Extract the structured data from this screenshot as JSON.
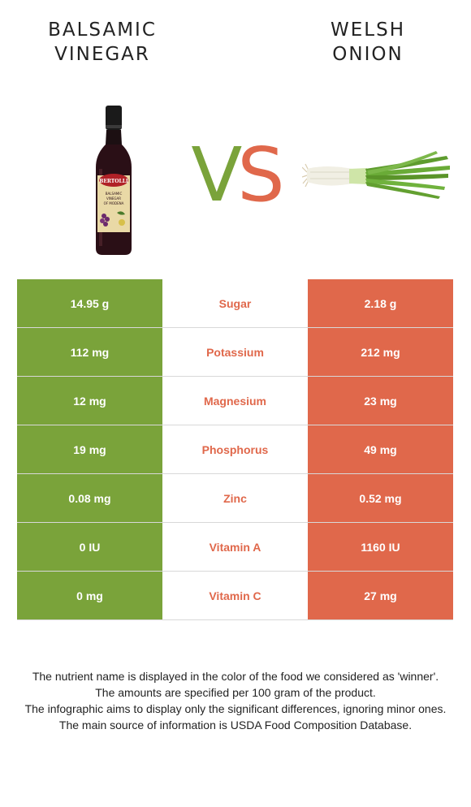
{
  "left_food": {
    "title_line1": "BALSAMIC",
    "title_line2": "VINEGAR",
    "color": "#7aa33a",
    "image": "balsamic-vinegar-bottle"
  },
  "right_food": {
    "title_line1": "WELSH",
    "title_line2": "ONION",
    "color": "#e0684b",
    "image": "welsh-onion"
  },
  "vs": {
    "v": "V",
    "s": "S"
  },
  "rows": [
    {
      "nutrient": "Sugar",
      "left": "14.95 g",
      "right": "2.18 g"
    },
    {
      "nutrient": "Potassium",
      "left": "112 mg",
      "right": "212 mg"
    },
    {
      "nutrient": "Magnesium",
      "left": "12 mg",
      "right": "23 mg"
    },
    {
      "nutrient": "Phosphorus",
      "left": "19 mg",
      "right": "49 mg"
    },
    {
      "nutrient": "Zinc",
      "left": "0.08 mg",
      "right": "0.52 mg"
    },
    {
      "nutrient": "Vitamin A",
      "left": "0 IU",
      "right": "1160 IU"
    },
    {
      "nutrient": "Vitamin C",
      "left": "0 mg",
      "right": "27 mg"
    }
  ],
  "notes": [
    "The nutrient name is displayed in the color of the food we considered as 'winner'.",
    "The amounts are specified per 100 gram of the product.",
    "The infographic aims to display only the significant differences, ignoring minor ones.",
    "The main source of information is USDA Food Composition Database."
  ],
  "bottle_label": {
    "brand": "BERTOLLI",
    "line1": "BALSAMIC",
    "line2": "VINEGAR",
    "line3": "OF MODENA"
  }
}
